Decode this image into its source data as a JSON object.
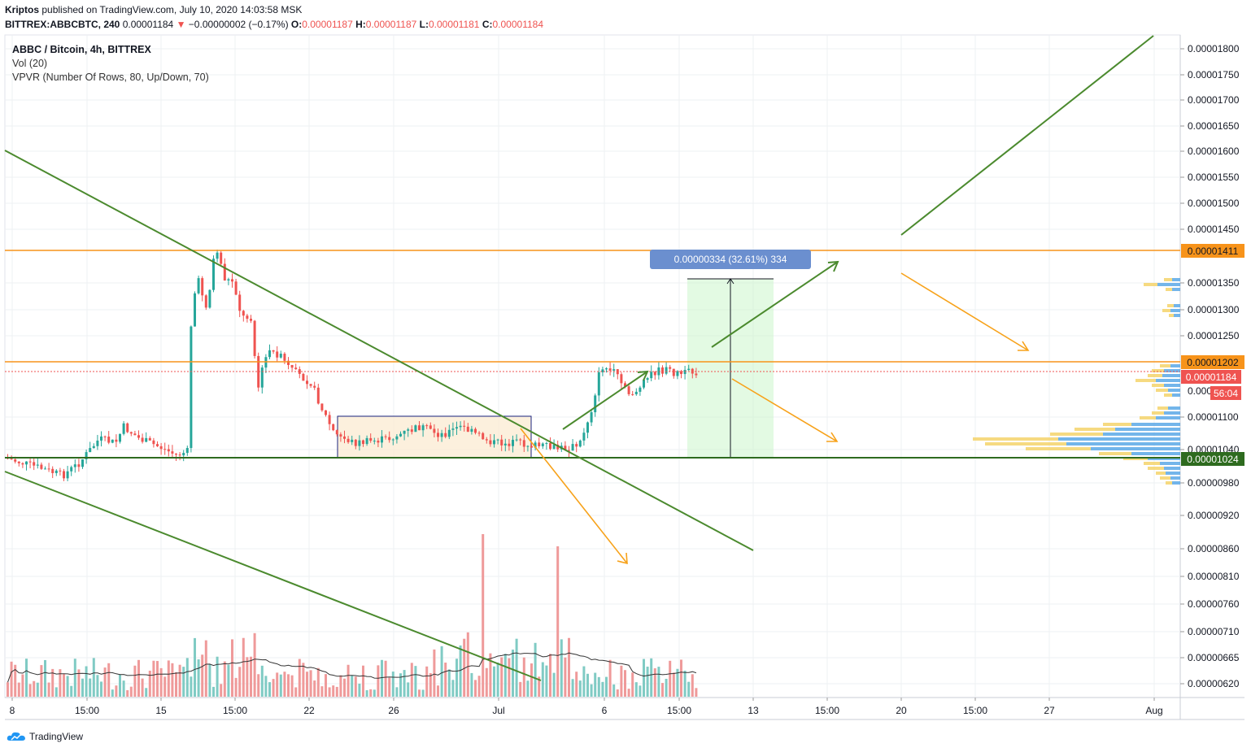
{
  "header": {
    "author": "Kriptos",
    "published": "published on TradingView.com, July 10, 2020 14:03:58 MSK",
    "symbol": "BITTREX:ABBCBTC, 240",
    "last": "0.00001184",
    "arrow": "▼",
    "change": "−0.00000002 (−0.17%)",
    "open_label": "O:",
    "open": "0.00001187",
    "high_label": "H:",
    "high": "0.00001187",
    "low_label": "L:",
    "low": "0.00001181",
    "close_label": "C:",
    "close": "0.00001184"
  },
  "legend": {
    "title": "ABBC / Bitcoin, 4h, BITTREX",
    "vol": "Vol (20)",
    "vpvr": "VPVR (Number Of Rows, 80, Up/Down, 70)"
  },
  "footer": {
    "brand": "TradingView"
  },
  "colors": {
    "up": "#26a69a",
    "down": "#ef5350",
    "vol_up": "#80cbc4",
    "vol_down": "#ef9a9a",
    "trend": "#4b8a2e",
    "orange": "#f7931a",
    "grid": "#eef0f3"
  },
  "chart_data": {
    "type": "candlestick",
    "y_axis_ticks": [
      "0.00001800",
      "0.00001750",
      "0.00001700",
      "0.00001650",
      "0.00001600",
      "0.00001550",
      "0.00001500",
      "0.00001450",
      "0.00001350",
      "0.00001300",
      "0.00001250",
      "0.00001100",
      "0.00001040",
      "0.00000980",
      "0.00000920",
      "0.00000860",
      "0.00000810",
      "0.00000760",
      "0.00000710",
      "0.00000665",
      "0.00000620"
    ],
    "x_axis_ticks": [
      "8",
      "15:00",
      "15",
      "15:00",
      "22",
      "26",
      "Jul",
      "6",
      "15:00",
      "13",
      "15:00",
      "20",
      "15:00",
      "27",
      "Aug"
    ],
    "price_labels": {
      "resistance_top": "0.00001411",
      "resistance_mid": "0.00001202",
      "current": "0.00001184",
      "countdown": "56:04",
      "partial_tick": "0.000",
      "support": "0.00001024"
    },
    "measure_label": "0.00000334 (32.61%) 334",
    "horizontal_levels": [
      1.411e-05,
      1.202e-05,
      1.024e-05
    ],
    "price_range_shown": [
      6.1e-06,
      1.85e-05
    ]
  }
}
